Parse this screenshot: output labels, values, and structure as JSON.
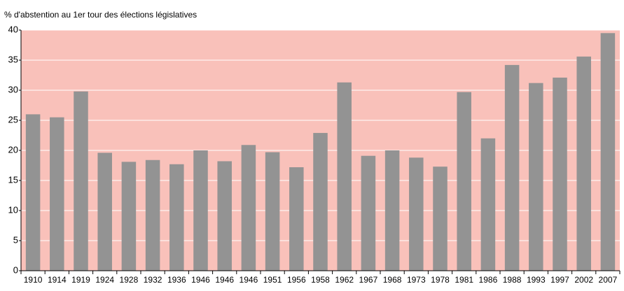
{
  "chart_data": {
    "type": "bar",
    "ylabel": "% d'abstention au 1er tour des élections législatives",
    "categories": [
      "1910",
      "1914",
      "1919",
      "1924",
      "1928",
      "1932",
      "1936",
      "1946",
      "1946",
      "1946",
      "1951",
      "1956",
      "1958",
      "1962",
      "1967",
      "1968",
      "1973",
      "1978",
      "1981",
      "1986",
      "1988",
      "1993",
      "1997",
      "2002",
      "2007"
    ],
    "values": [
      26,
      25.5,
      29.8,
      19.6,
      18.1,
      18.4,
      17.7,
      20,
      18.2,
      20.9,
      19.7,
      17.2,
      22.9,
      31.3,
      19.1,
      20,
      18.8,
      17.3,
      29.7,
      22,
      34.2,
      31.2,
      32.1,
      35.6,
      39.5
    ],
    "color": "#939393",
    "background": "#f9c1ba",
    "ylim": [
      0,
      40
    ],
    "yticks": [
      0,
      5,
      10,
      15,
      20,
      25,
      30,
      35,
      40
    ],
    "grid": true
  }
}
